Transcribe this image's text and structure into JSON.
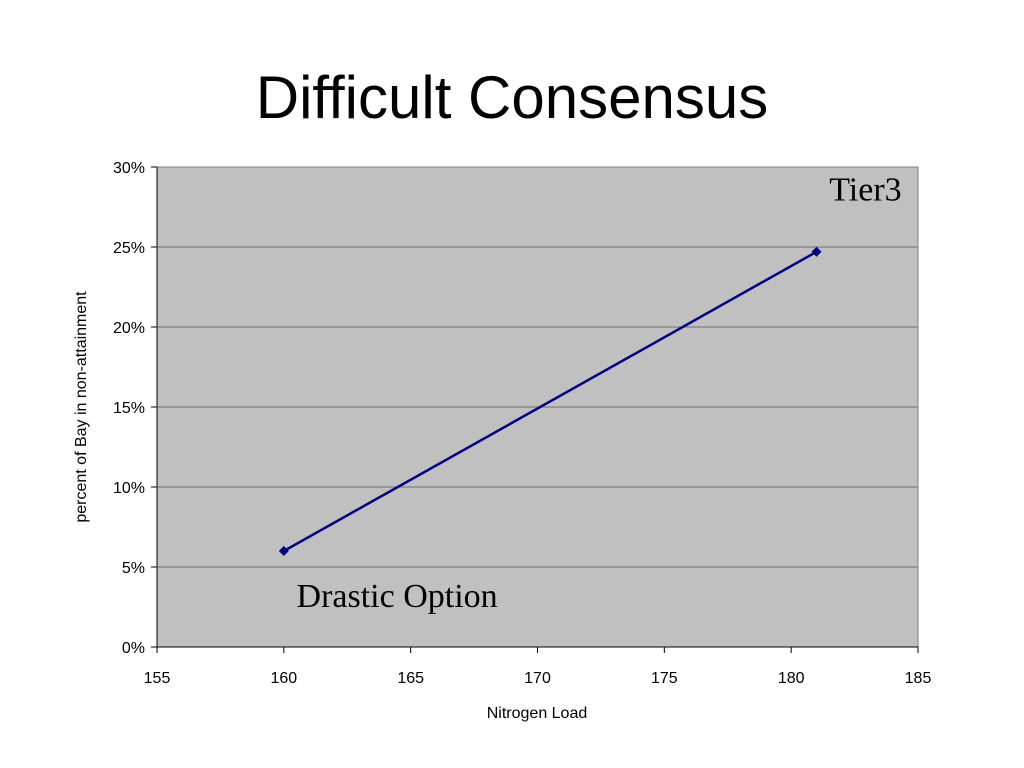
{
  "slide": {
    "title": "Difficult Consensus"
  },
  "chart_data": {
    "type": "line",
    "xlabel": "Nitrogen Load",
    "ylabel": "percent of Bay in non-attainment",
    "xlim": [
      155,
      185
    ],
    "ylim": [
      0,
      0.3
    ],
    "x_ticks": [
      155,
      160,
      165,
      170,
      175,
      180,
      185
    ],
    "y_ticks": [
      0,
      0.05,
      0.1,
      0.15,
      0.2,
      0.25,
      0.3
    ],
    "y_tick_labels": [
      "0%",
      "5%",
      "10%",
      "15%",
      "20%",
      "25%",
      "30%"
    ],
    "grid": "horizontal",
    "plot_background": "#c0c0c0",
    "series": [
      {
        "color": "#000080",
        "marker": "diamond",
        "x": [
          160,
          181
        ],
        "y": [
          0.06,
          0.247
        ]
      }
    ],
    "annotations": [
      {
        "text": "Tier3",
        "x": 181.5,
        "y": 0.279
      },
      {
        "text": "Drastic Option",
        "x": 160.5,
        "y": 0.025
      }
    ]
  }
}
